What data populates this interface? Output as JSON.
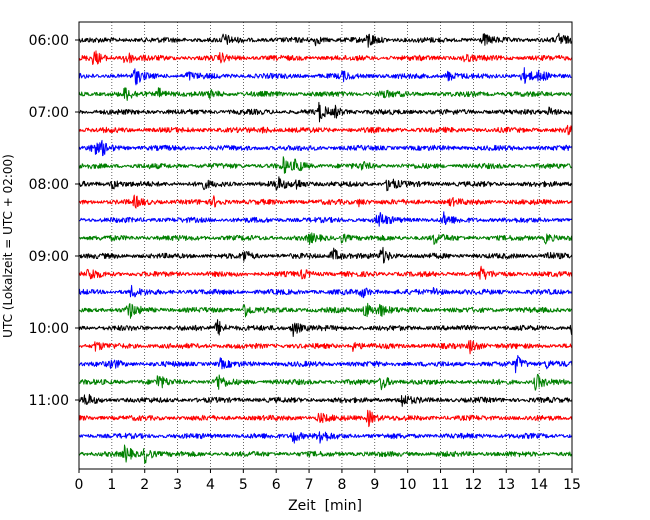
{
  "chart_data": {
    "type": "line",
    "title": "",
    "xlabel": "Zeit  [min]",
    "ylabel": "UTC (Lokalzeit = UTC + 02:00)",
    "xlim": [
      0,
      15
    ],
    "x_ticks": [
      "0",
      "1",
      "2",
      "3",
      "4",
      "5",
      "6",
      "7",
      "8",
      "9",
      "10",
      "11",
      "12",
      "13",
      "14",
      "15"
    ],
    "y_ticks": [
      "06:00",
      "07:00",
      "08:00",
      "09:00",
      "10:00",
      "11:00"
    ],
    "grid": "vertical dotted",
    "row_minutes": 15,
    "trace_colors": [
      "#000000",
      "#ff0000",
      "#0000ff",
      "#008000"
    ],
    "rows": [
      {
        "start": "06:00",
        "color": "#000000",
        "events": [
          {
            "t": 4.4,
            "a": 0.6
          },
          {
            "t": 7.2,
            "a": 0.5
          },
          {
            "t": 8.8,
            "a": 0.9
          },
          {
            "t": 12.3,
            "a": 0.6
          },
          {
            "t": 14.6,
            "a": 0.7
          }
        ]
      },
      {
        "start": "06:15",
        "color": "#ff0000",
        "events": [
          {
            "t": 0.45,
            "a": 0.9
          },
          {
            "t": 1.4,
            "a": 1.0
          },
          {
            "t": 4.3,
            "a": 0.4
          },
          {
            "t": 11.7,
            "a": 0.5
          }
        ]
      },
      {
        "start": "06:30",
        "color": "#0000ff",
        "events": [
          {
            "t": 1.7,
            "a": 0.9
          },
          {
            "t": 3.3,
            "a": 0.5
          },
          {
            "t": 8.0,
            "a": 0.5
          },
          {
            "t": 11.2,
            "a": 0.6
          },
          {
            "t": 13.5,
            "a": 1.0
          },
          {
            "t": 14.0,
            "a": 0.5
          }
        ]
      },
      {
        "start": "06:45",
        "color": "#008000",
        "events": [
          {
            "t": 1.4,
            "a": 0.7
          },
          {
            "t": 2.4,
            "a": 0.7
          },
          {
            "t": 4.0,
            "a": 0.5
          },
          {
            "t": 9.2,
            "a": 0.5
          }
        ]
      },
      {
        "start": "07:00",
        "color": "#000000",
        "events": [
          {
            "t": 7.3,
            "a": 1.0
          },
          {
            "t": 7.8,
            "a": 0.5
          },
          {
            "t": 14.3,
            "a": 0.5
          }
        ]
      },
      {
        "start": "07:15",
        "color": "#ff0000",
        "events": [
          {
            "t": 5.6,
            "a": 0.3
          },
          {
            "t": 14.9,
            "a": 0.4
          }
        ]
      },
      {
        "start": "07:30",
        "color": "#0000ff",
        "events": [
          {
            "t": 0.4,
            "a": 0.8
          },
          {
            "t": 0.7,
            "a": 0.6
          }
        ]
      },
      {
        "start": "07:45",
        "color": "#008000",
        "events": [
          {
            "t": 6.2,
            "a": 0.9
          },
          {
            "t": 6.6,
            "a": 0.7
          },
          {
            "t": 8.6,
            "a": 0.4
          }
        ]
      },
      {
        "start": "08:00",
        "color": "#000000",
        "events": [
          {
            "t": 1.0,
            "a": 0.6
          },
          {
            "t": 3.7,
            "a": 0.6
          },
          {
            "t": 6.0,
            "a": 0.9
          },
          {
            "t": 6.6,
            "a": 0.6
          },
          {
            "t": 9.4,
            "a": 1.0
          }
        ]
      },
      {
        "start": "08:15",
        "color": "#ff0000",
        "events": [
          {
            "t": 1.7,
            "a": 0.6
          },
          {
            "t": 4.1,
            "a": 0.5
          },
          {
            "t": 8.5,
            "a": 0.4
          },
          {
            "t": 11.3,
            "a": 0.4
          }
        ]
      },
      {
        "start": "08:30",
        "color": "#0000ff",
        "events": [
          {
            "t": 9.1,
            "a": 1.0
          },
          {
            "t": 11.1,
            "a": 0.7
          }
        ]
      },
      {
        "start": "08:45",
        "color": "#008000",
        "events": [
          {
            "t": 7.0,
            "a": 0.5
          },
          {
            "t": 8.0,
            "a": 0.5
          },
          {
            "t": 10.8,
            "a": 0.6
          },
          {
            "t": 14.2,
            "a": 0.6
          }
        ]
      },
      {
        "start": "09:00",
        "color": "#000000",
        "events": [
          {
            "t": 5.0,
            "a": 0.7
          },
          {
            "t": 7.7,
            "a": 1.0
          },
          {
            "t": 9.2,
            "a": 1.0
          },
          {
            "t": 14.2,
            "a": 0.5
          }
        ]
      },
      {
        "start": "09:15",
        "color": "#ff0000",
        "events": [
          {
            "t": 0.3,
            "a": 0.8
          },
          {
            "t": 6.8,
            "a": 0.5
          },
          {
            "t": 12.2,
            "a": 0.8
          }
        ]
      },
      {
        "start": "09:30",
        "color": "#0000ff",
        "events": [
          {
            "t": 1.6,
            "a": 0.6
          },
          {
            "t": 8.6,
            "a": 0.7
          },
          {
            "t": 10.8,
            "a": 0.5
          }
        ]
      },
      {
        "start": "09:45",
        "color": "#008000",
        "events": [
          {
            "t": 1.5,
            "a": 1.0
          },
          {
            "t": 5.0,
            "a": 1.0
          },
          {
            "t": 8.7,
            "a": 1.0
          },
          {
            "t": 9.1,
            "a": 0.9
          }
        ]
      },
      {
        "start": "10:00",
        "color": "#000000",
        "events": [
          {
            "t": 4.2,
            "a": 1.0
          },
          {
            "t": 6.5,
            "a": 1.0
          },
          {
            "t": 15.0,
            "a": 0.6
          }
        ]
      },
      {
        "start": "10:15",
        "color": "#ff0000",
        "events": [
          {
            "t": 0.5,
            "a": 0.5
          },
          {
            "t": 8.3,
            "a": 0.6
          },
          {
            "t": 11.9,
            "a": 1.0
          }
        ]
      },
      {
        "start": "10:30",
        "color": "#0000ff",
        "events": [
          {
            "t": 1.0,
            "a": 0.5
          },
          {
            "t": 4.3,
            "a": 0.5
          },
          {
            "t": 13.3,
            "a": 1.0
          },
          {
            "t": 14.2,
            "a": 0.5
          }
        ]
      },
      {
        "start": "10:45",
        "color": "#008000",
        "events": [
          {
            "t": 2.4,
            "a": 0.8
          },
          {
            "t": 4.2,
            "a": 1.0
          },
          {
            "t": 9.2,
            "a": 0.9
          },
          {
            "t": 13.9,
            "a": 1.0
          }
        ]
      },
      {
        "start": "11:00",
        "color": "#000000",
        "events": [
          {
            "t": 0.2,
            "a": 0.7
          },
          {
            "t": 9.8,
            "a": 0.8
          }
        ]
      },
      {
        "start": "11:15",
        "color": "#ff0000",
        "events": [
          {
            "t": 7.3,
            "a": 0.6
          },
          {
            "t": 8.8,
            "a": 1.0
          }
        ]
      },
      {
        "start": "11:30",
        "color": "#0000ff",
        "events": [
          {
            "t": 6.5,
            "a": 0.9
          },
          {
            "t": 7.3,
            "a": 1.0
          }
        ]
      },
      {
        "start": "11:45",
        "color": "#008000",
        "events": [
          {
            "t": 1.4,
            "a": 0.9
          },
          {
            "t": 2.0,
            "a": 1.0
          }
        ]
      }
    ]
  }
}
